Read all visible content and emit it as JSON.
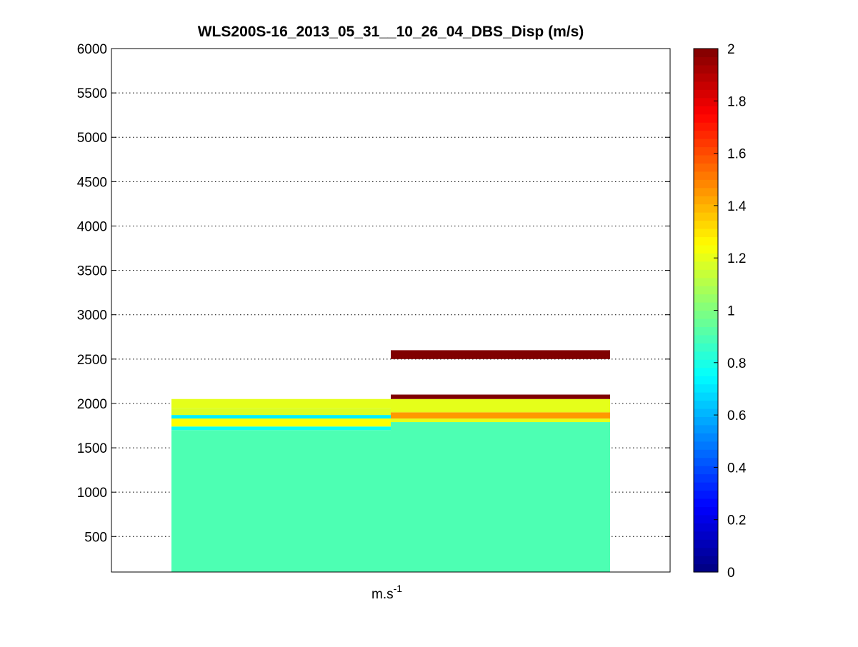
{
  "chart_data": {
    "type": "heatmap",
    "title": "WLS200S-16_2013_05_31__10_26_04_DBS_Disp (m/s)",
    "xlabel": "m.s",
    "xlabel_superscript": "-1",
    "ylabel": "",
    "ylim": [
      100,
      6000
    ],
    "yticks": [
      500,
      1000,
      1500,
      2000,
      2500,
      3000,
      3500,
      4000,
      4500,
      5000,
      5500,
      6000
    ],
    "grid": "y-dotted",
    "colormap": "jet",
    "colorbar": {
      "range": [
        0,
        2
      ],
      "ticks": [
        0,
        0.2,
        0.4,
        0.6,
        0.8,
        1,
        1.2,
        1.4,
        1.6,
        1.8,
        2
      ]
    },
    "columns": [
      {
        "cells": [
          {
            "y0": 100,
            "y1": 1700,
            "v": 0.9
          },
          {
            "y0": 1700,
            "y1": 1740,
            "v": 0.78
          },
          {
            "y0": 1740,
            "y1": 1830,
            "v": 1.25
          },
          {
            "y0": 1830,
            "y1": 1870,
            "v": 0.72
          },
          {
            "y0": 1870,
            "y1": 1950,
            "v": 1.18
          },
          {
            "y0": 1950,
            "y1": 2050,
            "v": 1.2
          }
        ]
      },
      {
        "cells": [
          {
            "y0": 100,
            "y1": 1790,
            "v": 0.9
          },
          {
            "y0": 1790,
            "y1": 1830,
            "v": 1.2
          },
          {
            "y0": 1830,
            "y1": 1900,
            "v": 1.45
          },
          {
            "y0": 1900,
            "y1": 2050,
            "v": 1.2
          },
          {
            "y0": 2050,
            "y1": 2100,
            "v": 2.0
          },
          {
            "y0": 2500,
            "y1": 2600,
            "v": 2.0
          }
        ]
      }
    ]
  }
}
